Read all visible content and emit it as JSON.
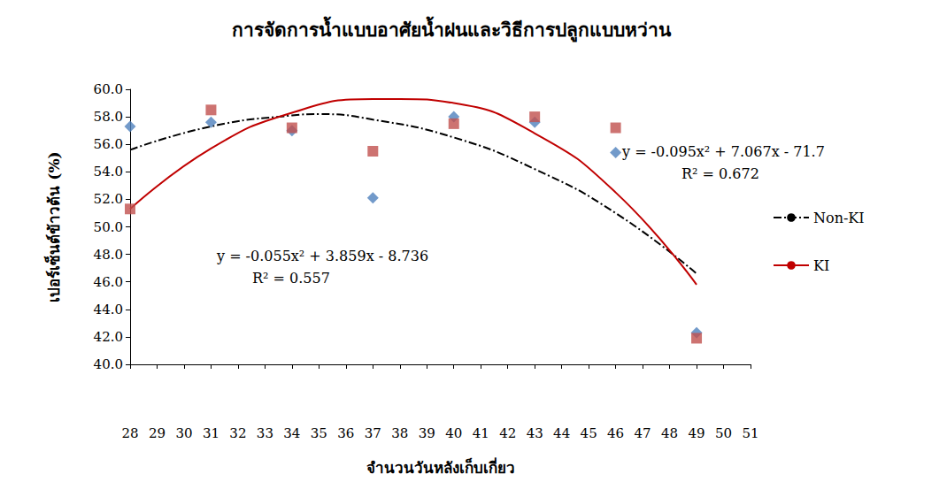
{
  "chart_data": {
    "type": "scatter",
    "title": "การจัดการน้ำแบบอาศัยน้ำฝนและวิธีการปลูกแบบหว่าน",
    "x_label": "จำนวนวันหลังเก็บเกี่ยว",
    "y_label": "เปอร์เซ็นต์ข้าวต้น (%)",
    "xlim": [
      28,
      51
    ],
    "xticks": [
      28,
      29,
      30,
      31,
      32,
      33,
      34,
      35,
      36,
      37,
      38,
      39,
      40,
      41,
      42,
      43,
      44,
      45,
      46,
      47,
      48,
      49,
      50,
      51
    ],
    "ylim": [
      40,
      60
    ],
    "yticks": [
      {
        "value": 40,
        "label": "40.0"
      },
      {
        "value": 42,
        "label": "42.0"
      },
      {
        "value": 44,
        "label": "44.0"
      },
      {
        "value": 46,
        "label": "46.0"
      },
      {
        "value": 48,
        "label": "48.0"
      },
      {
        "value": 50,
        "label": "50.0"
      },
      {
        "value": 52,
        "label": "52.0"
      },
      {
        "value": 54,
        "label": "54.0"
      },
      {
        "value": 56,
        "label": "56.0"
      },
      {
        "value": 58,
        "label": "58.0"
      },
      {
        "value": 60,
        "label": "60.0"
      }
    ],
    "grid": false,
    "legend": "right",
    "series": [
      {
        "type": "scatter",
        "marker": "diamond",
        "color": "#4f81bd",
        "x": [
          28,
          31,
          34,
          37,
          40,
          43,
          46,
          49
        ],
        "values": [
          57.3,
          57.6,
          57.0,
          52.1,
          58.0,
          57.6,
          55.4,
          42.3
        ]
      },
      {
        "type": "scatter",
        "marker": "square",
        "color": "#c0504d",
        "x": [
          28,
          31,
          34,
          37,
          40,
          43,
          46,
          49
        ],
        "values": [
          51.3,
          58.5,
          57.2,
          55.5,
          57.5,
          58.0,
          57.2,
          41.9
        ]
      },
      {
        "name": "Non-KI",
        "type": "line",
        "line_style": "dashdot",
        "color": "#000000",
        "x": [
          28,
          31,
          34,
          35,
          37,
          40,
          43,
          46,
          49
        ],
        "values": [
          55.6,
          57.3,
          58.1,
          58.2,
          57.8,
          56.5,
          54.2,
          51.0,
          46.6
        ]
      },
      {
        "name": "KI",
        "type": "line",
        "line_style": "solid",
        "color": "#c00000",
        "x": [
          28,
          31,
          34,
          37,
          38,
          40,
          43,
          46,
          49
        ],
        "values": [
          51.3,
          55.7,
          58.3,
          59.3,
          59.3,
          59.0,
          56.8,
          52.5,
          45.8
        ]
      }
    ],
    "annotations": [
      "y = -0.095x² + 7.067x - 71.7",
      "R² = 0.672",
      "y = -0.055x² + 3.859x - 8.736",
      "R² = 0.557"
    ]
  }
}
